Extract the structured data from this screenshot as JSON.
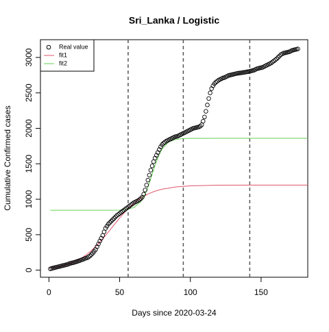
{
  "chart_data": {
    "type": "scatter",
    "title": "Sri_Lanka / Logistic",
    "x_label": "Days since 2020-03-24",
    "y_label": "Cumulative Confirmed cases",
    "xlim": [
      -6,
      183
    ],
    "xticks": [
      0,
      50,
      100,
      150
    ],
    "ylim": [
      -100,
      3250
    ],
    "yticks": [
      0,
      500,
      1000,
      1500,
      2000,
      2500,
      3000
    ],
    "vlines": [
      56,
      95,
      142
    ],
    "legend": "top-left",
    "series": [
      {
        "name": "Real value",
        "type": "scatter",
        "color": "#000000",
        "x": [
          1,
          2,
          3,
          4,
          5,
          6,
          7,
          8,
          9,
          10,
          11,
          12,
          13,
          14,
          15,
          16,
          17,
          18,
          19,
          20,
          21,
          22,
          23,
          24,
          25,
          26,
          27,
          28,
          29,
          30,
          31,
          32,
          33,
          34,
          35,
          36,
          37,
          38,
          39,
          40,
          41,
          42,
          43,
          44,
          45,
          46,
          47,
          48,
          49,
          50,
          51,
          52,
          53,
          54,
          55,
          56,
          57,
          58,
          59,
          60,
          61,
          62,
          63,
          64,
          65,
          66,
          67,
          68,
          69,
          70,
          71,
          72,
          73,
          74,
          75,
          76,
          77,
          78,
          79,
          80,
          81,
          82,
          83,
          84,
          85,
          86,
          87,
          88,
          89,
          90,
          91,
          92,
          93,
          94,
          95,
          96,
          97,
          98,
          99,
          100,
          101,
          102,
          103,
          104,
          105,
          106,
          107,
          108,
          109,
          110,
          111,
          112,
          113,
          114,
          115,
          116,
          117,
          118,
          119,
          120,
          121,
          122,
          123,
          124,
          125,
          126,
          127,
          128,
          129,
          130,
          131,
          132,
          133,
          134,
          135,
          136,
          137,
          138,
          139,
          140,
          141,
          142,
          143,
          144,
          145,
          146,
          147,
          148,
          149,
          150,
          151,
          152,
          153,
          154,
          155,
          156,
          157,
          158,
          159,
          160,
          161,
          162,
          163,
          164,
          165,
          166,
          167,
          168,
          169,
          170,
          171,
          172,
          173,
          174,
          175,
          176
        ],
        "values": [
          18,
          25,
          30,
          35,
          40,
          45,
          50,
          55,
          60,
          65,
          70,
          75,
          80,
          88,
          95,
          100,
          105,
          110,
          117,
          123,
          130,
          137,
          145,
          152,
          160,
          168,
          175,
          185,
          200,
          220,
          240,
          265,
          290,
          330,
          370,
          410,
          450,
          490,
          540,
          590,
          620,
          650,
          670,
          690,
          710,
          730,
          750,
          770,
          785,
          800,
          815,
          830,
          845,
          860,
          875,
          890,
          905,
          920,
          935,
          950,
          960,
          970,
          980,
          995,
          1010,
          1030,
          1070,
          1130,
          1200,
          1270,
          1340,
          1410,
          1470,
          1530,
          1580,
          1620,
          1660,
          1700,
          1740,
          1770,
          1790,
          1805,
          1820,
          1830,
          1840,
          1850,
          1860,
          1870,
          1880,
          1885,
          1890,
          1900,
          1910,
          1920,
          1930,
          1940,
          1950,
          1960,
          1970,
          1980,
          1990,
          2000,
          2005,
          2010,
          2015,
          2020,
          2030,
          2050,
          2100,
          2160,
          2240,
          2330,
          2420,
          2500,
          2560,
          2600,
          2630,
          2650,
          2665,
          2680,
          2690,
          2700,
          2710,
          2715,
          2725,
          2735,
          2745,
          2750,
          2755,
          2760,
          2765,
          2770,
          2775,
          2778,
          2780,
          2783,
          2786,
          2790,
          2793,
          2797,
          2800,
          2805,
          2810,
          2815,
          2820,
          2830,
          2840,
          2845,
          2850,
          2855,
          2860,
          2870,
          2880,
          2890,
          2900,
          2910,
          2920,
          2935,
          2950,
          2965,
          2980,
          3000,
          3020,
          3040,
          3050,
          3060,
          3065,
          3070,
          3075,
          3080,
          3090,
          3100,
          3105,
          3110,
          3115,
          3120
        ]
      },
      {
        "name": "fit1",
        "type": "line",
        "color": "#DF536B",
        "x": [
          1,
          5,
          10,
          15,
          20,
          25,
          30,
          35,
          40,
          45,
          50,
          55,
          60,
          65,
          70,
          75,
          80,
          90,
          100,
          120,
          150,
          183
        ],
        "values": [
          30,
          42,
          63,
          93,
          136,
          195,
          274,
          373,
          488,
          613,
          736,
          849,
          943,
          1018,
          1074,
          1114,
          1142,
          1174,
          1189,
          1198,
          1200,
          1200
        ]
      },
      {
        "name": "fit2",
        "type": "line",
        "color": "#61D04F",
        "x": [
          1,
          10,
          20,
          30,
          40,
          50,
          55,
          60,
          65,
          68,
          70,
          72,
          75,
          78,
          80,
          85,
          90,
          95,
          100,
          120,
          150,
          183
        ],
        "values": [
          845,
          845,
          845,
          845,
          845,
          846,
          856,
          883,
          966,
          1071,
          1170,
          1290,
          1475,
          1634,
          1710,
          1812,
          1846,
          1856,
          1859,
          1860,
          1860,
          1860
        ]
      }
    ]
  }
}
